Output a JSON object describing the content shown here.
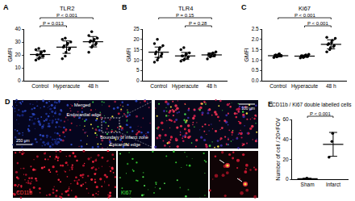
{
  "chart_data": [
    {
      "panel": "A",
      "type": "scatter",
      "title": "TLR2",
      "y_label": "GMFI",
      "color": "#000000",
      "marker": "circle",
      "categories": [
        "Control",
        "Hyperacute",
        "48 h"
      ],
      "points": [
        [
          16,
          17,
          18,
          19,
          19,
          20,
          20,
          21,
          22,
          23,
          24,
          25
        ],
        [
          17,
          19,
          22,
          24,
          25,
          26,
          27,
          28,
          29,
          30,
          32,
          33
        ],
        [
          22,
          26,
          27,
          28,
          29,
          30,
          31,
          31,
          32,
          33,
          35,
          38
        ]
      ],
      "mean": [
        20.3,
        26,
        30.2
      ],
      "sd": [
        2.8,
        4.8,
        4
      ],
      "ylim": [
        0,
        40
      ],
      "yticks": [
        0,
        10,
        20,
        30,
        40
      ],
      "comparisons": [
        {
          "from": "Control",
          "to": "Hyperacute",
          "label": "P = 0.013"
        },
        {
          "from": "Control",
          "to": "48 h",
          "label": "P < 0.001"
        }
      ]
    },
    {
      "panel": "B",
      "type": "scatter",
      "title": "TLR4",
      "y_label": "GMFI",
      "color": "#000000",
      "marker": "circle",
      "categories": [
        "Control",
        "Hyperacute",
        "48 h"
      ],
      "points": [
        [
          9,
          10,
          11,
          12,
          13,
          13,
          14,
          15,
          16,
          17,
          18,
          20
        ],
        [
          9.5,
          10,
          10.5,
          11,
          11.5,
          12,
          12,
          12.5,
          13,
          13.5,
          15,
          16
        ],
        [
          10.5,
          11.5,
          12,
          12,
          12.5,
          12.5,
          13,
          13,
          13.5,
          14
        ]
      ],
      "mean": [
        13.8,
        12,
        12.5
      ],
      "sd": [
        2.5,
        1.7,
        0.9
      ],
      "ylim": [
        0,
        25
      ],
      "yticks": [
        0,
        5,
        10,
        15,
        20,
        25
      ],
      "comparisons": [
        {
          "from": "Hyperacute",
          "to": "48 h",
          "label": "P = 0.28"
        },
        {
          "from": "Control",
          "to": "48 h",
          "label": "P = 0.15"
        }
      ]
    },
    {
      "panel": "C",
      "type": "scatter",
      "title": "Ki67",
      "y_label": "GMFI",
      "color": "#000000",
      "marker": "circle",
      "categories": [
        "Control",
        "Hyperacute",
        "48 h"
      ],
      "points": [
        [
          1.12,
          1.15,
          1.18,
          1.2,
          1.2,
          1.22,
          1.25,
          1.28,
          1.3
        ],
        [
          1.1,
          1.12,
          1.15,
          1.17,
          1.18,
          1.2,
          1.2,
          1.22,
          1.25,
          1.28
        ],
        [
          1.4,
          1.5,
          1.6,
          1.65,
          1.7,
          1.75,
          1.8,
          1.85,
          1.95,
          2.05,
          2.1
        ]
      ],
      "mean": [
        1.21,
        1.19,
        1.76
      ],
      "sd": [
        0.06,
        0.05,
        0.22
      ],
      "ylim": [
        0,
        2.5
      ],
      "yticks": [
        {
          "value": 0,
          "label": "0.0"
        },
        0.5,
        {
          "value": 1,
          "label": "1.0"
        },
        1.5,
        {
          "value": 2,
          "label": "2.0"
        },
        2.5
      ],
      "comparisons": [
        {
          "from": "Hyperacute",
          "to": "48 h",
          "label": "P < 0.001"
        },
        {
          "from": "Control",
          "to": "48 h",
          "label": "P < 0.001"
        }
      ]
    },
    {
      "panel": "E",
      "type": "scatter",
      "title": "CD11b / Ki67 double labelled cells",
      "y_label": "Number of cell / 20×FOV",
      "color": "#000000",
      "marker": "circle",
      "categories": [
        "Sham",
        "Infarct"
      ],
      "points": [
        [
          0,
          0.5,
          1
        ],
        [
          22,
          38,
          46
        ]
      ],
      "mean": [
        0.5,
        35
      ],
      "sd": [
        0.5,
        12
      ],
      "ylim": [
        0,
        60
      ],
      "yticks": [
        0,
        20,
        40,
        60
      ],
      "comparisons": [
        {
          "from": "Sham",
          "to": "Infarct",
          "label": "P < 0.001"
        }
      ]
    }
  ],
  "image_panel": {
    "panel": "D",
    "merged_label": "Merged",
    "annotations": [
      "Endocardial edge",
      "Boundary of infarct zone",
      "Epicardial edge"
    ],
    "scale_bars": [
      "250 μm",
      "100 μm"
    ],
    "channels": [
      "CD11b",
      "Ki67"
    ]
  }
}
